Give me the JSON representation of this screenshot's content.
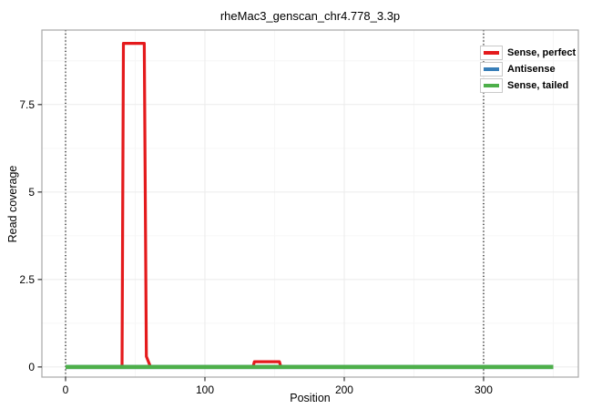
{
  "chart_data": {
    "type": "line",
    "title": "rheMac3_genscan_chr4.778_3.3p",
    "xlabel": "Position",
    "ylabel": "Read coverage",
    "xlim": [
      -17,
      368
    ],
    "ylim": [
      -0.29,
      9.63
    ],
    "grid": true,
    "legend_position": "top-right-inside",
    "x_ticks": [
      {
        "value": 0,
        "label": "0"
      },
      {
        "value": 100,
        "label": "100"
      },
      {
        "value": 200,
        "label": "200"
      },
      {
        "value": 300,
        "label": "300"
      }
    ],
    "y_ticks": [
      {
        "value": 0,
        "label": "0"
      },
      {
        "value": 2.5,
        "label": "2.5"
      },
      {
        "value": 5,
        "label": "5"
      },
      {
        "value": 7.5,
        "label": "7.5"
      }
    ],
    "x_minor_ticks": [
      50,
      150,
      250,
      350
    ],
    "y_minor_ticks": [
      1.25,
      3.75,
      6.25,
      8.75
    ],
    "vlines": {
      "style": "dotted",
      "color": "#000000",
      "positions": [
        0,
        300
      ]
    },
    "series": [
      {
        "name": "Sense, perfect",
        "color": "#E41A1C",
        "stroke_width": 3.2,
        "points": [
          [
            0,
            0
          ],
          [
            40.5,
            0
          ],
          [
            41.5,
            9.25
          ],
          [
            56.5,
            9.25
          ],
          [
            58,
            0.3
          ],
          [
            61,
            0
          ],
          [
            134.5,
            0
          ],
          [
            135.5,
            0.15
          ],
          [
            153.5,
            0.15
          ],
          [
            154.5,
            0
          ],
          [
            350,
            0
          ]
        ]
      },
      {
        "name": "Antisense",
        "color": "#377EB8",
        "stroke_width": 4.5,
        "points": [
          [
            0,
            0
          ],
          [
            350,
            0
          ]
        ]
      },
      {
        "name": "Sense, tailed",
        "color": "#4DAF4A",
        "stroke_width": 4.5,
        "points": [
          [
            0,
            0
          ],
          [
            350,
            0
          ]
        ]
      }
    ]
  },
  "theme": {
    "panel_border_color": "#a8a8a8",
    "grid_major_color": "#ebebeb",
    "grid_minor_color": "#f6f6f6",
    "tick_color": "#333333",
    "text_color": "#000000",
    "background": "#ffffff"
  }
}
